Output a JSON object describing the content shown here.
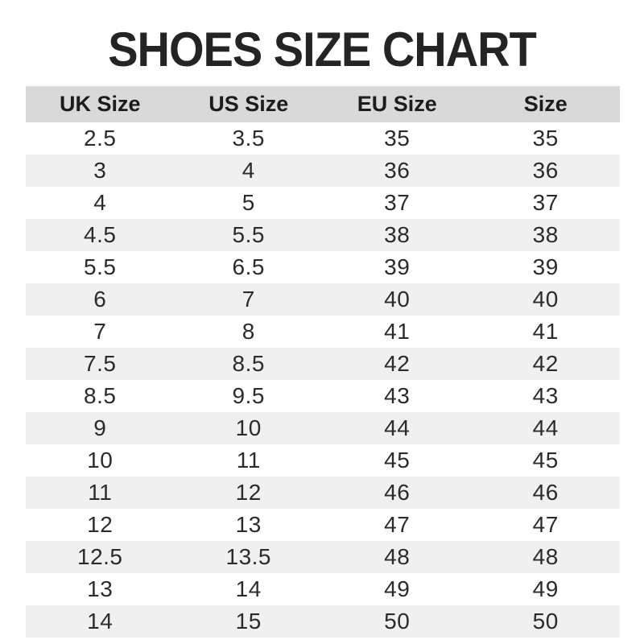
{
  "chart_data": {
    "type": "table",
    "title": "SHOES SIZE CHART",
    "columns": [
      "UK Size",
      "US Size",
      "EU Size",
      "Size"
    ],
    "rows": [
      [
        "2.5",
        "3.5",
        "35",
        "35"
      ],
      [
        "3",
        "4",
        "36",
        "36"
      ],
      [
        "4",
        "5",
        "37",
        "37"
      ],
      [
        "4.5",
        "5.5",
        "38",
        "38"
      ],
      [
        "5.5",
        "6.5",
        "39",
        "39"
      ],
      [
        "6",
        "7",
        "40",
        "40"
      ],
      [
        "7",
        "8",
        "41",
        "41"
      ],
      [
        "7.5",
        "8.5",
        "42",
        "42"
      ],
      [
        "8.5",
        "9.5",
        "43",
        "43"
      ],
      [
        "9",
        "10",
        "44",
        "44"
      ],
      [
        "10",
        "11",
        "45",
        "45"
      ],
      [
        "11",
        "12",
        "46",
        "46"
      ],
      [
        "12",
        "13",
        "47",
        "47"
      ],
      [
        "12.5",
        "13.5",
        "48",
        "48"
      ],
      [
        "13",
        "14",
        "49",
        "49"
      ],
      [
        "14",
        "15",
        "50",
        "50"
      ]
    ],
    "layout": {
      "grid": false,
      "row_striping": "alternating starting white",
      "alignment": "center"
    }
  },
  "colors": {
    "page_bg": "#ffffff",
    "header_bg": "#d9d9d9",
    "row_alt_bg": "#f0f0f0",
    "title_text": "#242424",
    "cell_text": "#2b2b2b"
  }
}
